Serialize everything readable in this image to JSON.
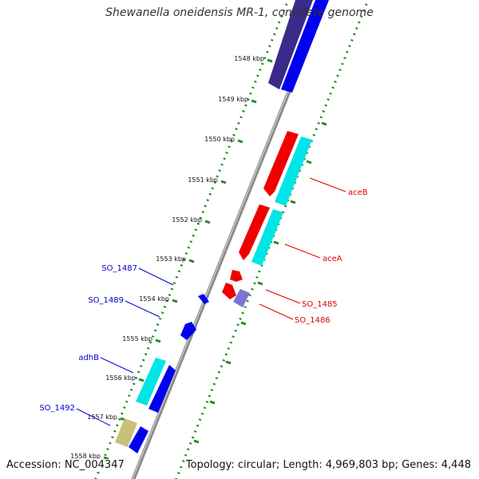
{
  "title": "Shewanella oneidensis MR-1, complete genome",
  "accession": "Accession: NC_004347",
  "topology": "Topology: circular; Length: 4,969,803 bp; Genes: 4,448",
  "colors": {
    "backbone": "#8a8a8a",
    "dots": "#1e8c1e",
    "forward_gene": "#ee0000",
    "forward_label": "#dd0000",
    "reverse_gene": "#0000ee",
    "reverse_label": "#0000cc",
    "cds": "#00e5e5",
    "dark_navy": "#3a2a8a",
    "lavender": "#7b74d6",
    "khaki": "#c8c07a"
  },
  "kbp_ticks": [
    {
      "label": "1548 kbp"
    },
    {
      "label": "1549 kbp"
    },
    {
      "label": "1550 kbp"
    },
    {
      "label": "1551 kbp"
    },
    {
      "label": "1552 kbp"
    },
    {
      "label": "1553 kbp"
    },
    {
      "label": "1554 kbp"
    },
    {
      "label": "1555 kbp"
    },
    {
      "label": "1556 kbp"
    },
    {
      "label": "1557 kbp"
    },
    {
      "label": "1558 kbp"
    }
  ],
  "genes_left": [
    {
      "name": "SO_1487"
    },
    {
      "name": "SO_1489"
    },
    {
      "name": "adhB"
    },
    {
      "name": "SO_1492"
    }
  ],
  "genes_right": [
    {
      "name": "aceB"
    },
    {
      "name": "aceA"
    },
    {
      "name": "SO_1485"
    },
    {
      "name": "SO_1486"
    }
  ]
}
